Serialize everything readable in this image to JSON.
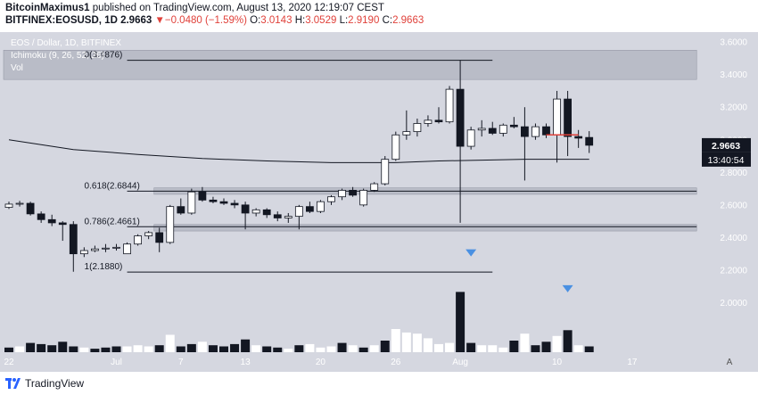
{
  "header": {
    "line1": {
      "author": "BitcoinMaximus1",
      "text": " published on TradingView.com, August 13, 2020 12:19:07 CEST"
    },
    "line2": {
      "symbol": "BITFINEX:EOSUSD, 1D",
      "last": "2.9663",
      "arrow": "▼",
      "change": "−0.0480 (−1.59%)",
      "o_label": "O:",
      "o_val": "3.0143",
      "h_label": "H:",
      "h_val": "3.0529",
      "l_label": "L:",
      "l_val": "2.9190",
      "c_label": "C:",
      "c_val": "2.9663"
    }
  },
  "colors": {
    "chart_bg": "#d5d7e0",
    "band": "#b9bcc7",
    "up": "#ffffff",
    "down": "#131722",
    "ichimoku": "#131722",
    "price_tag": "#131722",
    "hline_red": "#e0413a",
    "marker": "#4a90e2"
  },
  "chart_data": {
    "type": "candlestick",
    "overlay_texts": [
      "EOS / Dollar, 1D, BITFINEX",
      "Ichimoku (9, 26, 52, 26)",
      "Vol"
    ],
    "y_axis": {
      "min": 1.8,
      "max": 3.65,
      "ticks": [
        "3.6000",
        "3.4000",
        "3.2000",
        "3.0000",
        "2.8000",
        "2.6000",
        "2.4000",
        "2.2000",
        "2.0000"
      ]
    },
    "x_axis": {
      "ticks": [
        {
          "i": 0,
          "label": "22"
        },
        {
          "i": 10,
          "label": "Jul"
        },
        {
          "i": 16,
          "label": "7"
        },
        {
          "i": 22,
          "label": "13"
        },
        {
          "i": 29,
          "label": "20"
        },
        {
          "i": 36,
          "label": "26"
        },
        {
          "i": 42,
          "label": "Aug"
        },
        {
          "i": 51,
          "label": "10"
        },
        {
          "i": 58,
          "label": "17"
        }
      ],
      "scale_mode": "A"
    },
    "price_tag": "2.9663",
    "time_tag": "13:40:54",
    "fib_levels": [
      {
        "label": "0(3.4876)",
        "value": 3.4876,
        "i_from": 11,
        "i_to": 45
      },
      {
        "label": "0.618(2.6844)",
        "value": 2.6844,
        "i_from": 11,
        "i_to": 64
      },
      {
        "label": "0.786(2.4661)",
        "value": 2.4661,
        "i_from": 11,
        "i_to": 64
      },
      {
        "label": "1(2.1880)",
        "value": 2.188,
        "i_from": 11,
        "i_to": 45
      }
    ],
    "zones": [
      {
        "from": 3.37,
        "to": 3.55,
        "i_from": 0,
        "i_to": 64
      },
      {
        "from": 2.665,
        "to": 2.705,
        "i_from": 14,
        "i_to": 64
      },
      {
        "from": 2.44,
        "to": 2.48,
        "i_from": 14,
        "i_to": 64
      }
    ],
    "red_line": {
      "value": 3.03,
      "i_from": 50,
      "i_to": 53
    },
    "markers": [
      {
        "i": 43,
        "value": 2.3
      },
      {
        "i": 52,
        "value": 2.08
      }
    ],
    "ichimoku": {
      "x": [
        0,
        6,
        12,
        18,
        24,
        30,
        36,
        40,
        44,
        48,
        54
      ],
      "y": [
        3.0,
        2.94,
        2.91,
        2.885,
        2.87,
        2.86,
        2.86,
        2.87,
        2.875,
        2.88,
        2.88
      ]
    },
    "candles": [
      [
        2.585,
        2.62,
        2.575,
        2.605
      ],
      [
        2.605,
        2.625,
        2.59,
        2.61
      ],
      [
        2.61,
        2.62,
        2.535,
        2.545
      ],
      [
        2.545,
        2.56,
        2.49,
        2.51
      ],
      [
        2.51,
        2.54,
        2.47,
        2.49
      ],
      [
        2.49,
        2.5,
        2.38,
        2.48
      ],
      [
        2.48,
        2.5,
        2.19,
        2.3
      ],
      [
        2.3,
        2.34,
        2.28,
        2.32
      ],
      [
        2.32,
        2.35,
        2.31,
        2.33
      ],
      [
        2.33,
        2.36,
        2.31,
        2.335
      ],
      [
        2.335,
        2.36,
        2.32,
        2.34
      ],
      [
        2.3,
        2.37,
        2.3,
        2.36
      ],
      [
        2.36,
        2.42,
        2.35,
        2.41
      ],
      [
        2.41,
        2.44,
        2.39,
        2.43
      ],
      [
        2.43,
        2.46,
        2.31,
        2.37
      ],
      [
        2.37,
        2.6,
        2.36,
        2.59
      ],
      [
        2.59,
        2.64,
        2.54,
        2.55
      ],
      [
        2.55,
        2.7,
        2.54,
        2.68
      ],
      [
        2.68,
        2.71,
        2.62,
        2.63
      ],
      [
        2.63,
        2.65,
        2.61,
        2.62
      ],
      [
        2.62,
        2.64,
        2.6,
        2.61
      ],
      [
        2.61,
        2.63,
        2.58,
        2.6
      ],
      [
        2.6,
        2.62,
        2.45,
        2.55
      ],
      [
        2.55,
        2.58,
        2.53,
        2.57
      ],
      [
        2.57,
        2.58,
        2.52,
        2.54
      ],
      [
        2.54,
        2.56,
        2.5,
        2.52
      ],
      [
        2.52,
        2.55,
        2.49,
        2.53
      ],
      [
        2.53,
        2.6,
        2.45,
        2.59
      ],
      [
        2.59,
        2.62,
        2.55,
        2.56
      ],
      [
        2.56,
        2.63,
        2.55,
        2.62
      ],
      [
        2.62,
        2.66,
        2.6,
        2.65
      ],
      [
        2.65,
        2.7,
        2.63,
        2.69
      ],
      [
        2.69,
        2.71,
        2.65,
        2.66
      ],
      [
        2.6,
        2.7,
        2.59,
        2.69
      ],
      [
        2.69,
        2.74,
        2.68,
        2.73
      ],
      [
        2.73,
        2.9,
        2.72,
        2.88
      ],
      [
        2.88,
        3.05,
        2.87,
        3.03
      ],
      [
        3.03,
        3.18,
        3.0,
        3.05
      ],
      [
        3.05,
        3.13,
        3.02,
        3.1
      ],
      [
        3.1,
        3.15,
        3.08,
        3.12
      ],
      [
        3.12,
        3.2,
        3.1,
        3.11
      ],
      [
        3.11,
        3.33,
        3.1,
        3.31
      ],
      [
        3.31,
        3.49,
        2.49,
        2.96
      ],
      [
        2.96,
        3.08,
        2.94,
        3.06
      ],
      [
        3.06,
        3.12,
        3.02,
        3.07
      ],
      [
        3.07,
        3.11,
        3.03,
        3.04
      ],
      [
        3.04,
        3.1,
        3.02,
        3.09
      ],
      [
        3.09,
        3.14,
        3.07,
        3.08
      ],
      [
        3.08,
        3.2,
        2.75,
        3.02
      ],
      [
        3.02,
        3.1,
        3.0,
        3.08
      ],
      [
        3.08,
        3.1,
        3.01,
        3.03
      ],
      [
        3.03,
        3.3,
        2.86,
        3.25
      ],
      [
        3.25,
        3.3,
        2.9,
        3.02
      ],
      [
        3.02,
        3.06,
        2.95,
        3.01
      ],
      [
        3.0143,
        3.0529,
        2.919,
        2.9663
      ]
    ],
    "volume": [
      {
        "v": 0.2,
        "up": false
      },
      {
        "v": 0.25,
        "up": true
      },
      {
        "v": 0.4,
        "up": false
      },
      {
        "v": 0.35,
        "up": false
      },
      {
        "v": 0.3,
        "up": false
      },
      {
        "v": 0.45,
        "up": false
      },
      {
        "v": 0.25,
        "up": false
      },
      {
        "v": 0.2,
        "up": true
      },
      {
        "v": 0.15,
        "up": false
      },
      {
        "v": 0.2,
        "up": false
      },
      {
        "v": 0.25,
        "up": false
      },
      {
        "v": 0.25,
        "up": true
      },
      {
        "v": 0.3,
        "up": true
      },
      {
        "v": 0.25,
        "up": true
      },
      {
        "v": 0.3,
        "up": false
      },
      {
        "v": 0.75,
        "up": true
      },
      {
        "v": 0.25,
        "up": false
      },
      {
        "v": 0.35,
        "up": false
      },
      {
        "v": 0.45,
        "up": true
      },
      {
        "v": 0.3,
        "up": false
      },
      {
        "v": 0.25,
        "up": false
      },
      {
        "v": 0.35,
        "up": false
      },
      {
        "v": 0.55,
        "up": false
      },
      {
        "v": 0.3,
        "up": true
      },
      {
        "v": 0.25,
        "up": false
      },
      {
        "v": 0.2,
        "up": false
      },
      {
        "v": 0.15,
        "up": true
      },
      {
        "v": 0.3,
        "up": false
      },
      {
        "v": 0.35,
        "up": true
      },
      {
        "v": 0.2,
        "up": true
      },
      {
        "v": 0.25,
        "up": true
      },
      {
        "v": 0.4,
        "up": false
      },
      {
        "v": 0.3,
        "up": true
      },
      {
        "v": 0.2,
        "up": false
      },
      {
        "v": 0.3,
        "up": true
      },
      {
        "v": 0.5,
        "up": false
      },
      {
        "v": 1.0,
        "up": true
      },
      {
        "v": 0.85,
        "up": true
      },
      {
        "v": 0.8,
        "up": true
      },
      {
        "v": 0.6,
        "up": true
      },
      {
        "v": 0.35,
        "up": true
      },
      {
        "v": 0.4,
        "up": true
      },
      {
        "v": 2.6,
        "up": false
      },
      {
        "v": 0.4,
        "up": false
      },
      {
        "v": 0.3,
        "up": true
      },
      {
        "v": 0.3,
        "up": true
      },
      {
        "v": 0.2,
        "up": true
      },
      {
        "v": 0.5,
        "up": false
      },
      {
        "v": 0.8,
        "up": true
      },
      {
        "v": 0.3,
        "up": false
      },
      {
        "v": 0.45,
        "up": false
      },
      {
        "v": 0.7,
        "up": true
      },
      {
        "v": 0.95,
        "up": false
      },
      {
        "v": 0.3,
        "up": true
      },
      {
        "v": 0.25,
        "up": false
      }
    ]
  },
  "footer": {
    "brand": "TradingView"
  }
}
